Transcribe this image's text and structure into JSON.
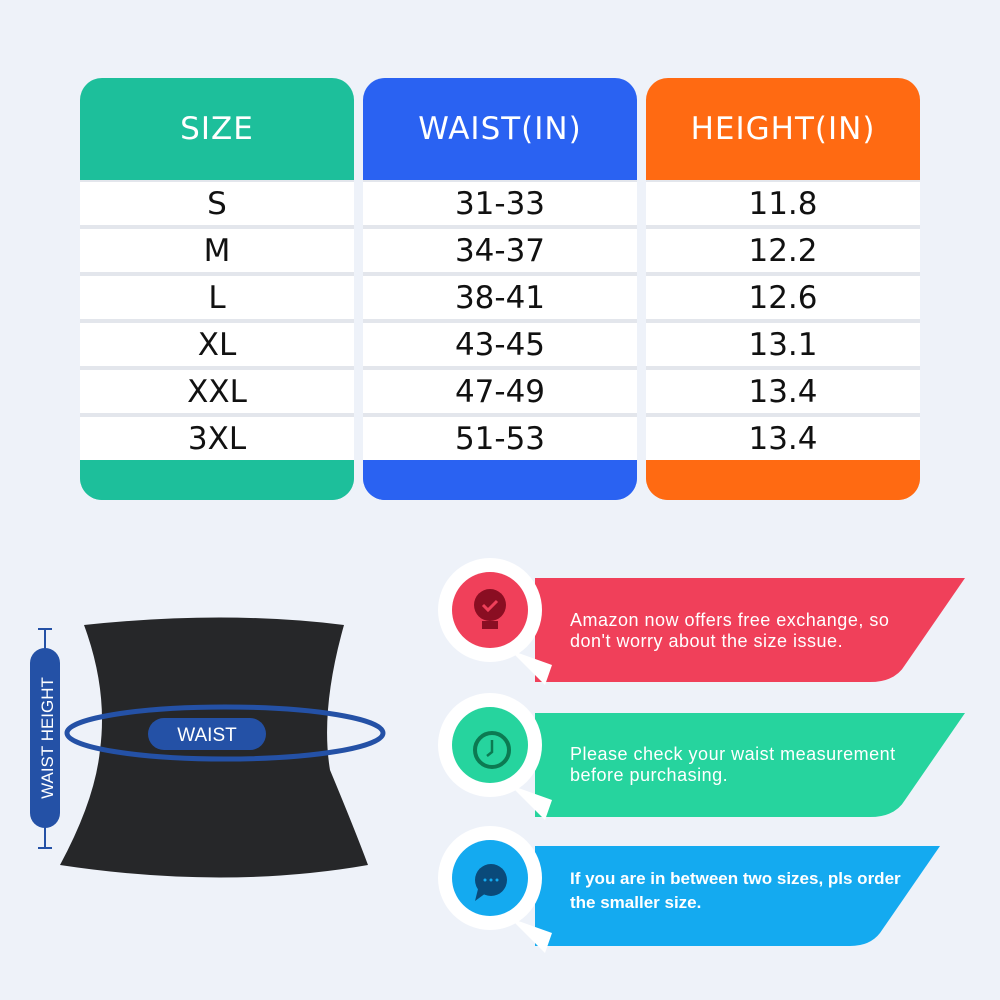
{
  "colors": {
    "size": "#1dbf9b",
    "waist": "#2a62f2",
    "height": "#ff6a12",
    "tip1": "#f0405a",
    "tip2": "#26d49e",
    "tip3": "#14aaf0",
    "accent": "#2451a6"
  },
  "table": {
    "headers": [
      "SIZE",
      "WAIST(IN)",
      "HEIGHT(IN)"
    ],
    "rows": [
      [
        "S",
        "31-33",
        "11.8"
      ],
      [
        "M",
        "34-37",
        "12.2"
      ],
      [
        "L",
        "38-41",
        "12.6"
      ],
      [
        "XL",
        "43-45",
        "13.1"
      ],
      [
        "XXL",
        "47-49",
        "13.4"
      ],
      [
        "3XL",
        "51-53",
        "13.4"
      ]
    ]
  },
  "diagram": {
    "waist_label": "WAIST",
    "height_label": "WAIST HEIGHT"
  },
  "tips": [
    {
      "icon": "lightbulb-check-icon",
      "text1": "Amazon now offers free exchange, so",
      "text2": "don't worry about the size issue."
    },
    {
      "icon": "clock-icon",
      "text1": "Please check your waist measurement",
      "text2": "before purchasing."
    },
    {
      "icon": "chat-bubble-icon",
      "text1": "If you are in between two sizes, pls order",
      "text2": "the smaller size."
    }
  ]
}
